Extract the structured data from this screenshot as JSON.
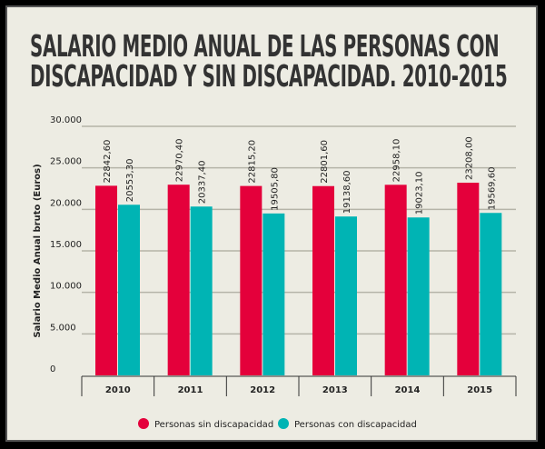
{
  "chart_data": {
    "type": "bar",
    "title_lines": [
      "SALARIO MEDIO ANUAL DE LAS PERSONAS CON",
      "DISCAPACIDAD Y SIN DISCAPACIDAD. 2010-2015"
    ],
    "xlabel": "",
    "ylabel": "Salario Medio Anual bruto (Euros)",
    "ylim": [
      0,
      30000
    ],
    "yticks": [
      0,
      5000,
      10000,
      15000,
      20000,
      25000,
      30000
    ],
    "ytick_labels": [
      "0",
      "5.000",
      "10.000",
      "15.000",
      "20.000",
      "25.000",
      "30.000"
    ],
    "grid": true,
    "legend": "bottom",
    "categories": [
      "2010",
      "2011",
      "2012",
      "2013",
      "2014",
      "2015"
    ],
    "series": [
      {
        "name": "Personas sin discapacidad",
        "color": "#e4003b",
        "values": [
          22842.6,
          22970.4,
          22815.2,
          22801.6,
          22958.1,
          23208.0
        ],
        "labels": [
          "22842,60",
          "22970,40",
          "22815,20",
          "22801,60",
          "22958,10",
          "23208,00"
        ]
      },
      {
        "name": "Personas con discapacidad",
        "color": "#00b4b4",
        "values": [
          20553.3,
          20337.4,
          19505.8,
          19138.6,
          19023.1,
          19569.6
        ],
        "labels": [
          "20553,30",
          "20337,40",
          "19505,80",
          "19138,60",
          "19023,10",
          "19569,60"
        ]
      }
    ]
  }
}
